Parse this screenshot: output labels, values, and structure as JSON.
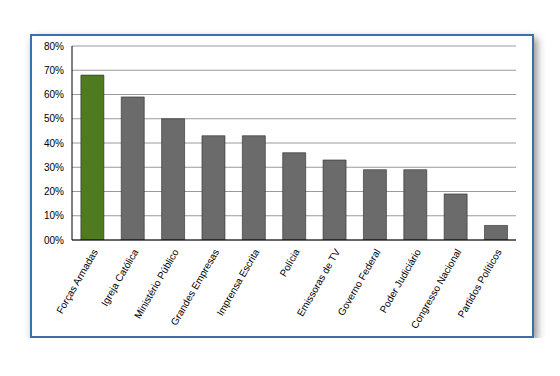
{
  "chart_data": {
    "type": "bar",
    "categories": [
      "Forças Armadas",
      "Igreja Católica",
      "Ministério Público",
      "Grandes Empresas",
      "Imprensa Escrita",
      "Polícia",
      "Emissoras de TV",
      "Governo Federal",
      "Poder Judiciário",
      "Congresso Nacional",
      "Partidos Políticos"
    ],
    "values": [
      68,
      59,
      50,
      43,
      43,
      36,
      33,
      29,
      29,
      19,
      6
    ],
    "colors": [
      "#4f7a1e",
      "#6b6b6b",
      "#6b6b6b",
      "#6b6b6b",
      "#6b6b6b",
      "#6b6b6b",
      "#6b6b6b",
      "#6b6b6b",
      "#6b6b6b",
      "#6b6b6b",
      "#6b6b6b"
    ],
    "ylim": [
      0,
      80
    ],
    "yticks": [
      {
        "value": 0,
        "label": "00%"
      },
      {
        "value": 10,
        "label": "10%"
      },
      {
        "value": 20,
        "label": "20%"
      },
      {
        "value": 30,
        "label": "30%"
      },
      {
        "value": 40,
        "label": "40%"
      },
      {
        "value": 50,
        "label": "50%"
      },
      {
        "value": 60,
        "label": "60%"
      },
      {
        "value": 70,
        "label": "70%"
      },
      {
        "value": 80,
        "label": "80%"
      }
    ],
    "grid": true
  }
}
